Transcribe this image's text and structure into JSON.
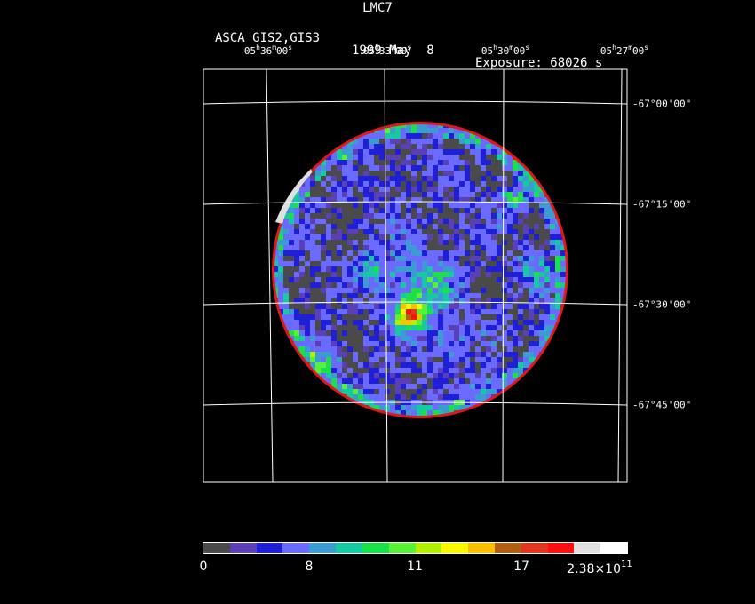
{
  "title": "LMC7",
  "subtitle": {
    "instrument": "ASCA GIS2,GIS3",
    "date": "1999 May  8",
    "exposure": "Exposure: 68026 s"
  },
  "ra_ticks": [
    {
      "h": "05",
      "m": "36",
      "s": "00"
    },
    {
      "h": "05",
      "m": "33",
      "s": "00"
    },
    {
      "h": "05",
      "m": "30",
      "s": "00"
    },
    {
      "h": "05",
      "m": "27",
      "s": "00"
    }
  ],
  "dec_ticks": [
    "-67°00'00\"",
    "-67°15'00\"",
    "-67°30'00\"",
    "-67°45'00\""
  ],
  "colorbar": {
    "colors": [
      "#4a4a4a",
      "#5a3fb5",
      "#1f1fd8",
      "#6a6aff",
      "#3a9cd0",
      "#15c9a0",
      "#1be04a",
      "#5af03a",
      "#b0f000",
      "#f8f800",
      "#f8c000",
      "#b06010",
      "#e03820",
      "#ff1010",
      "#e0e0e0",
      "#ffffff"
    ],
    "labels": [
      "0",
      "8",
      "11",
      "17"
    ],
    "max_label": "2.38×10",
    "max_exp": "11"
  }
}
